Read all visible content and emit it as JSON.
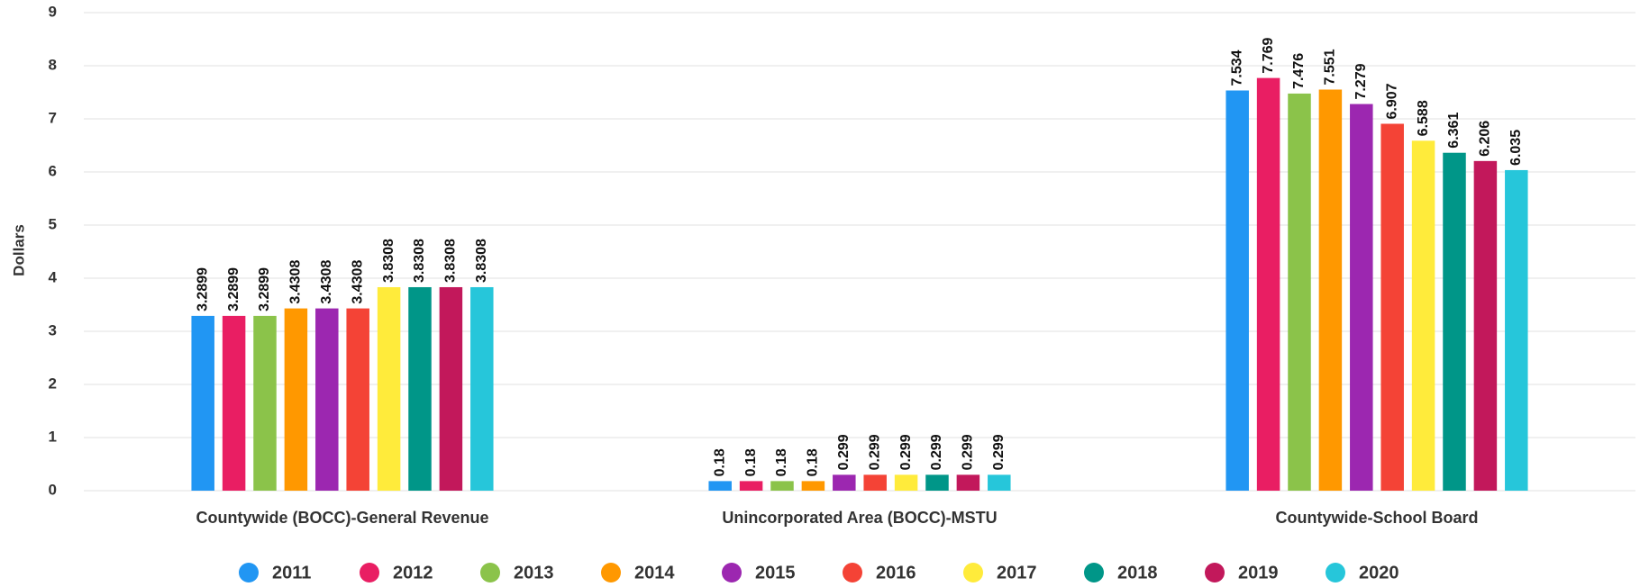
{
  "chart_data": {
    "type": "bar",
    "y_label": "Dollars",
    "categories": [
      "Countywide (BOCC)-General Revenue",
      "Unincorporated Area (BOCC)-MSTU",
      "Countywide-School Board"
    ],
    "series": [
      {
        "name": "2011",
        "color": "#2196f3",
        "values": [
          3.2899,
          0.18,
          7.534
        ]
      },
      {
        "name": "2012",
        "color": "#e91e63",
        "values": [
          3.2899,
          0.18,
          7.769
        ]
      },
      {
        "name": "2013",
        "color": "#8bc34a",
        "values": [
          3.2899,
          0.18,
          7.476
        ]
      },
      {
        "name": "2014",
        "color": "#ff9800",
        "values": [
          3.4308,
          0.18,
          7.551
        ]
      },
      {
        "name": "2015",
        "color": "#9c27b0",
        "values": [
          3.4308,
          0.299,
          7.279
        ]
      },
      {
        "name": "2016",
        "color": "#f44336",
        "values": [
          3.4308,
          0.299,
          6.907
        ]
      },
      {
        "name": "2017",
        "color": "#ffeb3b",
        "values": [
          3.8308,
          0.299,
          6.588
        ]
      },
      {
        "name": "2018",
        "color": "#009688",
        "values": [
          3.8308,
          0.299,
          6.361
        ]
      },
      {
        "name": "2019",
        "color": "#c2185b",
        "values": [
          3.8308,
          0.299,
          6.206
        ]
      },
      {
        "name": "2020",
        "color": "#26c6da",
        "values": [
          3.8308,
          0.299,
          6.035
        ]
      }
    ],
    "ylim": [
      0,
      9
    ],
    "yticks": [
      0,
      1,
      2,
      3,
      4,
      5,
      6,
      7,
      8,
      9
    ],
    "grid": true,
    "legend": "bottom"
  }
}
